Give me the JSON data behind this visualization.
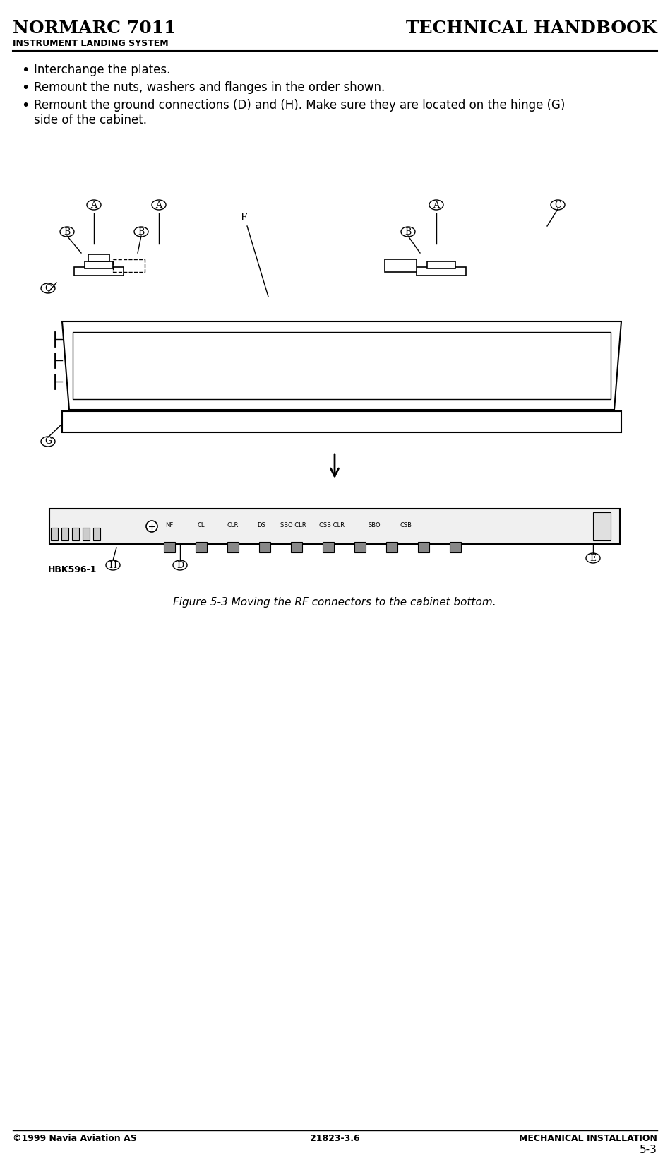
{
  "title_left": "NORMARC 7011",
  "title_right": "TECHNICAL HANDBOOK",
  "subtitle": "INSTRUMENT LANDING SYSTEM",
  "bullet1": "Interchange the plates.",
  "bullet2": "Remount the nuts, washers and flanges in the order shown.",
  "bullet3": "Remount the ground connections (D) and (H). Make sure they are located on the hinge (G)\nside of the cabinet.",
  "figure_caption": "Figure 5-3 Moving the RF connectors to the cabinet bottom.",
  "footer_left": "©1999 Navia Aviation AS",
  "footer_center": "21823-3.6",
  "footer_right": "MECHANICAL INSTALLATION",
  "page_number": "5-3",
  "bg_color": "#ffffff",
  "text_color": "#000000"
}
